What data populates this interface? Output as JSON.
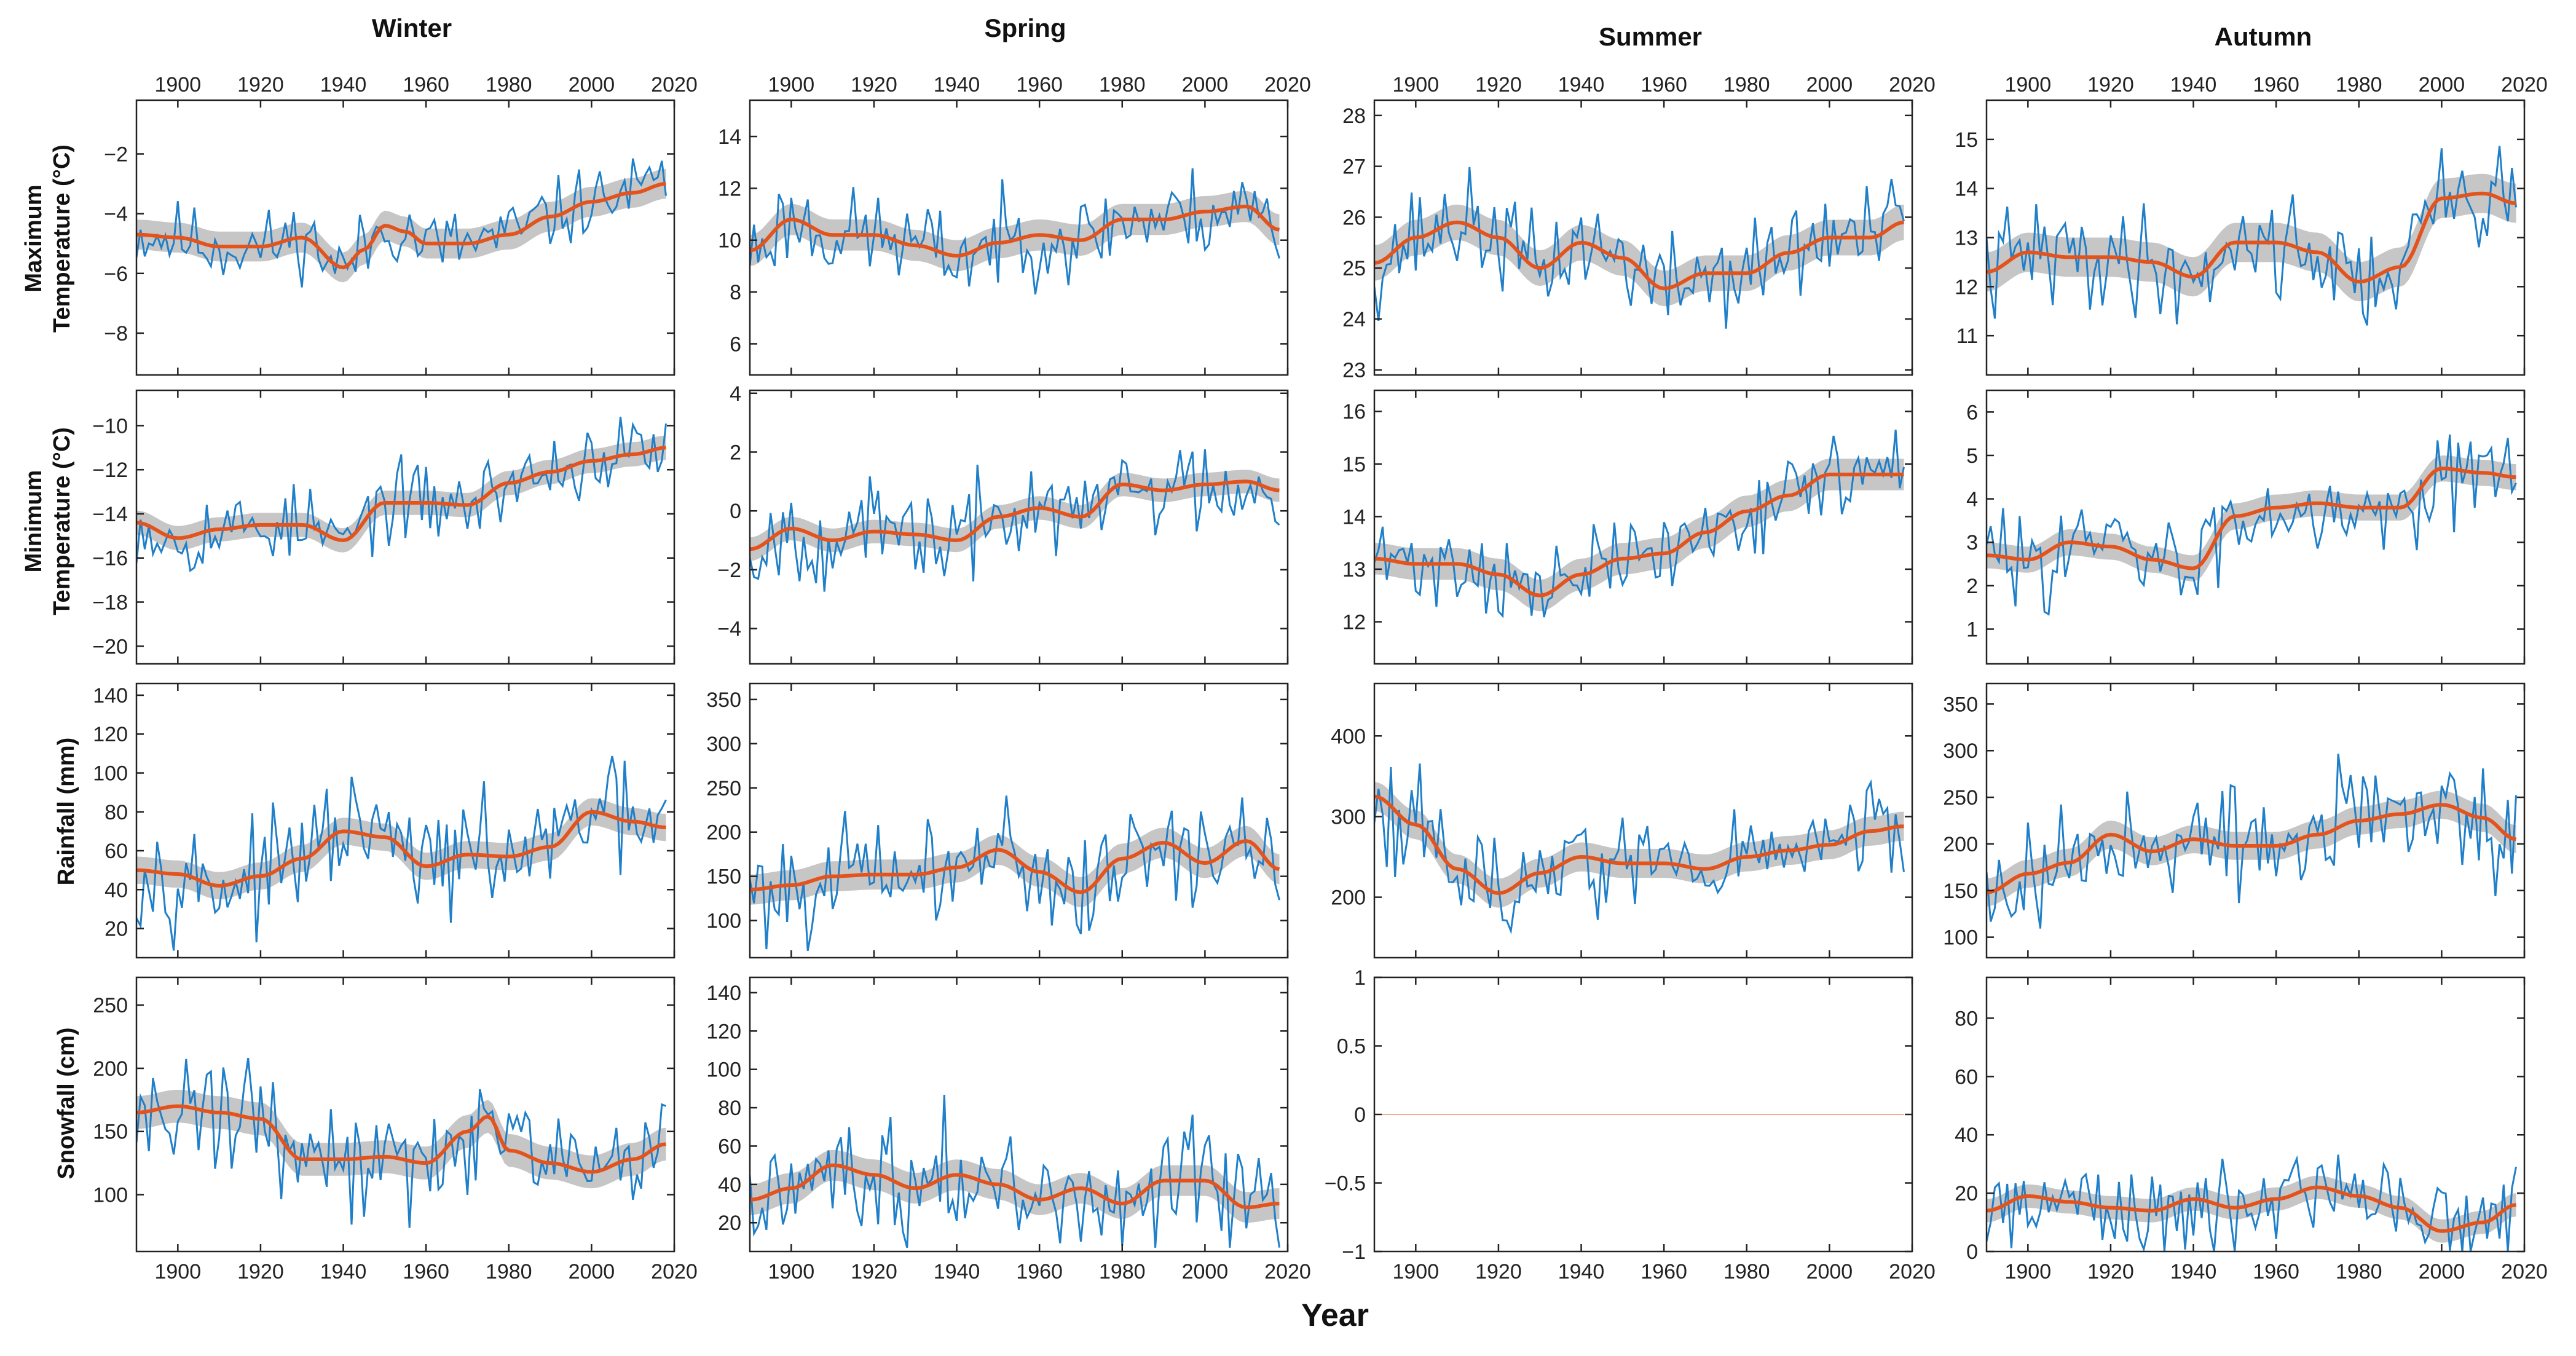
{
  "figure": {
    "columns": [
      "Winter",
      "Spring",
      "Summer",
      "Autumn"
    ],
    "rows": [
      "Maximum\nTemperature (°C)",
      "Minimum\nTemperature (°C)",
      "Rainfall (mm)",
      "Snowfall (cm)"
    ],
    "x_title": "Year",
    "colors": {
      "raw": "#1f7fc9",
      "trend": "#e2531d",
      "band": "#b3b3b3",
      "axis": "#222222"
    }
  },
  "chart_data": [
    {
      "id": "winter-max",
      "type": "line",
      "column": "Winter",
      "row": "Maximum Temperature (°C)",
      "xlim": [
        1890,
        2020
      ],
      "ylim": [
        -9.4,
        -0.2
      ],
      "yticks": [
        -8,
        -6,
        -4,
        -2
      ],
      "trend": {
        "x": [
          1890,
          1900,
          1910,
          1920,
          1930,
          1940,
          1945,
          1950,
          1955,
          1960,
          1970,
          1980,
          1990,
          2000,
          2010,
          2018
        ],
        "y": [
          -4.7,
          -4.8,
          -5.1,
          -5.1,
          -4.8,
          -5.8,
          -5.2,
          -4.4,
          -4.6,
          -5.0,
          -5.0,
          -4.7,
          -4.1,
          -3.6,
          -3.3,
          -3.0
        ],
        "band": 0.5
      },
      "raw": {
        "noise": 0.9,
        "seed": 11,
        "min": -9.1,
        "max": -0.5
      }
    },
    {
      "id": "spring-max",
      "type": "line",
      "column": "Spring",
      "row": "Maximum Temperature (°C)",
      "xlim": [
        1890,
        2020
      ],
      "ylim": [
        4.8,
        15.4
      ],
      "yticks": [
        6,
        8,
        10,
        12,
        14
      ],
      "trend": {
        "x": [
          1890,
          1900,
          1910,
          1920,
          1930,
          1940,
          1950,
          1960,
          1970,
          1980,
          1990,
          2000,
          2010,
          2018
        ],
        "y": [
          9.6,
          10.8,
          10.2,
          10.2,
          9.8,
          9.4,
          9.9,
          10.2,
          10.0,
          10.8,
          10.8,
          11.1,
          11.3,
          10.4
        ],
        "band": 0.6
      },
      "raw": {
        "noise": 1.3,
        "seed": 23,
        "min": 5.0,
        "max": 15.2
      }
    },
    {
      "id": "summer-max",
      "type": "line",
      "column": "Summer",
      "row": "Maximum Temperature (°C)",
      "xlim": [
        1890,
        2020
      ],
      "ylim": [
        22.9,
        28.3
      ],
      "yticks": [
        23,
        24,
        25,
        26,
        27,
        28
      ],
      "trend": {
        "x": [
          1890,
          1900,
          1910,
          1920,
          1930,
          1940,
          1950,
          1960,
          1970,
          1980,
          1990,
          2000,
          2010,
          2018
        ],
        "y": [
          25.1,
          25.6,
          25.9,
          25.6,
          25.0,
          25.5,
          25.2,
          24.6,
          24.9,
          24.9,
          25.3,
          25.6,
          25.6,
          25.9
        ],
        "band": 0.35
      },
      "raw": {
        "noise": 0.75,
        "seed": 37,
        "min": 22.9,
        "max": 28.3
      }
    },
    {
      "id": "autumn-max",
      "type": "line",
      "column": "Autumn",
      "row": "Maximum Temperature (°C)",
      "xlim": [
        1890,
        2020
      ],
      "ylim": [
        10.2,
        15.8
      ],
      "yticks": [
        11,
        12,
        13,
        14,
        15
      ],
      "trend": {
        "x": [
          1890,
          1900,
          1910,
          1920,
          1930,
          1940,
          1950,
          1960,
          1970,
          1980,
          1990,
          2000,
          2010,
          2018
        ],
        "y": [
          12.3,
          12.7,
          12.6,
          12.6,
          12.5,
          12.2,
          12.9,
          12.9,
          12.7,
          12.1,
          12.4,
          13.8,
          13.9,
          13.7
        ],
        "band": 0.4
      },
      "raw": {
        "noise": 0.8,
        "seed": 41,
        "min": 10.4,
        "max": 15.7
      }
    },
    {
      "id": "winter-min",
      "type": "line",
      "column": "Winter",
      "row": "Minimum Temperature (°C)",
      "xlim": [
        1890,
        2020
      ],
      "ylim": [
        -20.8,
        -8.4
      ],
      "yticks": [
        -20,
        -18,
        -16,
        -14,
        -12,
        -10
      ],
      "trend": {
        "x": [
          1890,
          1900,
          1910,
          1920,
          1930,
          1940,
          1950,
          1960,
          1970,
          1980,
          1990,
          2000,
          2010,
          2018
        ],
        "y": [
          -14.4,
          -15.1,
          -14.7,
          -14.5,
          -14.5,
          -15.2,
          -13.5,
          -13.5,
          -13.6,
          -12.6,
          -12.1,
          -11.6,
          -11.3,
          -11.0
        ],
        "band": 0.55
      },
      "raw": {
        "noise": 1.3,
        "seed": 53,
        "min": -20.6,
        "max": -8.7
      }
    },
    {
      "id": "spring-min",
      "type": "line",
      "column": "Spring",
      "row": "Minimum Temperature (°C)",
      "xlim": [
        1890,
        2020
      ],
      "ylim": [
        -5.2,
        4.1
      ],
      "yticks": [
        -4,
        -2,
        0,
        2,
        4
      ],
      "trend": {
        "x": [
          1890,
          1900,
          1910,
          1920,
          1930,
          1940,
          1950,
          1960,
          1970,
          1980,
          1990,
          2000,
          2010,
          2018
        ],
        "y": [
          -1.3,
          -0.6,
          -1.0,
          -0.7,
          -0.8,
          -1.0,
          -0.2,
          0.1,
          -0.2,
          0.9,
          0.7,
          0.9,
          1.0,
          0.7
        ],
        "band": 0.4
      },
      "raw": {
        "noise": 1.2,
        "seed": 67,
        "min": -5.0,
        "max": 4.0
      }
    },
    {
      "id": "summer-min",
      "type": "line",
      "column": "Summer",
      "row": "Minimum Temperature (°C)",
      "xlim": [
        1890,
        2020
      ],
      "ylim": [
        11.2,
        16.4
      ],
      "yticks": [
        12,
        13,
        14,
        15,
        16
      ],
      "trend": {
        "x": [
          1890,
          1900,
          1910,
          1920,
          1930,
          1940,
          1950,
          1960,
          1970,
          1980,
          1990,
          2000,
          2010,
          2018
        ],
        "y": [
          13.2,
          13.1,
          13.1,
          12.9,
          12.5,
          12.9,
          13.2,
          13.3,
          13.7,
          14.1,
          14.4,
          14.8,
          14.8,
          14.8
        ],
        "band": 0.3
      },
      "raw": {
        "noise": 0.6,
        "seed": 71,
        "min": 11.3,
        "max": 16.4
      }
    },
    {
      "id": "autumn-min",
      "type": "line",
      "column": "Autumn",
      "row": "Minimum Temperature (°C)",
      "xlim": [
        1890,
        2020
      ],
      "ylim": [
        0.2,
        6.5
      ],
      "yticks": [
        1,
        2,
        3,
        4,
        5,
        6
      ],
      "trend": {
        "x": [
          1890,
          1900,
          1910,
          1920,
          1930,
          1940,
          1950,
          1960,
          1970,
          1980,
          1990,
          2000,
          2010,
          2018
        ],
        "y": [
          2.7,
          2.6,
          3.0,
          2.9,
          2.6,
          2.4,
          3.6,
          3.8,
          3.9,
          3.8,
          3.8,
          4.7,
          4.6,
          4.5
        ],
        "band": 0.3
      },
      "raw": {
        "noise": 0.8,
        "seed": 83,
        "min": 0.4,
        "max": 6.4
      }
    },
    {
      "id": "winter-rain",
      "type": "line",
      "column": "Winter",
      "row": "Rainfall (mm)",
      "xlim": [
        1890,
        2020
      ],
      "ylim": [
        5,
        146
      ],
      "yticks": [
        20,
        40,
        60,
        80,
        100,
        120,
        140
      ],
      "trend": {
        "x": [
          1890,
          1900,
          1910,
          1920,
          1930,
          1940,
          1950,
          1960,
          1970,
          1980,
          1990,
          2000,
          2010,
          2018
        ],
        "y": [
          50,
          48,
          42,
          47,
          56,
          70,
          67,
          52,
          58,
          57,
          62,
          80,
          75,
          72
        ],
        "band": 7
      },
      "raw": {
        "noise": 20,
        "seed": 97,
        "min": 8,
        "max": 146
      }
    },
    {
      "id": "spring-rain",
      "type": "line",
      "column": "Spring",
      "row": "Rainfall (mm)",
      "xlim": [
        1890,
        2020
      ],
      "ylim": [
        58,
        368
      ],
      "yticks": [
        100,
        150,
        200,
        250,
        300,
        350
      ],
      "trend": {
        "x": [
          1890,
          1900,
          1910,
          1920,
          1930,
          1940,
          1950,
          1960,
          1970,
          1980,
          1990,
          2000,
          2010,
          2018
        ],
        "y": [
          135,
          140,
          150,
          152,
          152,
          160,
          180,
          155,
          132,
          170,
          188,
          165,
          190,
          158
        ],
        "band": 17
      },
      "raw": {
        "noise": 45,
        "seed": 101,
        "min": 60,
        "max": 366
      }
    },
    {
      "id": "summer-rain",
      "type": "line",
      "column": "Summer",
      "row": "Rainfall (mm)",
      "xlim": [
        1890,
        2020
      ],
      "ylim": [
        125,
        465
      ],
      "yticks": [
        200,
        300,
        400
      ],
      "trend": {
        "x": [
          1890,
          1900,
          1910,
          1920,
          1930,
          1940,
          1950,
          1960,
          1970,
          1980,
          1990,
          2000,
          2010,
          2018
        ],
        "y": [
          325,
          290,
          235,
          205,
          230,
          250,
          242,
          242,
          235,
          250,
          258,
          265,
          282,
          288
        ],
        "band": 18
      },
      "raw": {
        "noise": 48,
        "seed": 113,
        "min": 128,
        "max": 465
      }
    },
    {
      "id": "autumn-rain",
      "type": "line",
      "column": "Autumn",
      "row": "Rainfall (mm)",
      "xlim": [
        1890,
        2020
      ],
      "ylim": [
        78,
        372
      ],
      "yticks": [
        100,
        150,
        200,
        250,
        300,
        350
      ],
      "trend": {
        "x": [
          1890,
          1900,
          1910,
          1920,
          1930,
          1940,
          1950,
          1960,
          1970,
          1980,
          1990,
          2000,
          2010,
          2018
        ],
        "y": [
          148,
          168,
          180,
          210,
          192,
          205,
          198,
          198,
          210,
          225,
          232,
          242,
          228,
          205
        ],
        "band": 15
      },
      "raw": {
        "noise": 45,
        "seed": 127,
        "min": 82,
        "max": 370
      }
    },
    {
      "id": "winter-snow",
      "type": "line",
      "column": "Winter",
      "row": "Snowfall (cm)",
      "xlim": [
        1890,
        2020
      ],
      "ylim": [
        55,
        272
      ],
      "yticks": [
        100,
        150,
        200,
        250
      ],
      "trend": {
        "x": [
          1890,
          1900,
          1910,
          1920,
          1930,
          1940,
          1950,
          1960,
          1970,
          1975,
          1980,
          1990,
          2000,
          2010,
          2018
        ],
        "y": [
          165,
          170,
          165,
          160,
          128,
          128,
          130,
          125,
          150,
          162,
          135,
          125,
          118,
          128,
          140
        ],
        "band": 13
      },
      "raw": {
        "noise": 33,
        "seed": 131,
        "min": 58,
        "max": 270
      }
    },
    {
      "id": "spring-snow",
      "type": "line",
      "column": "Spring",
      "row": "Snowfall (cm)",
      "xlim": [
        1890,
        2020
      ],
      "ylim": [
        5,
        148
      ],
      "yticks": [
        20,
        40,
        60,
        80,
        100,
        120,
        140
      ],
      "trend": {
        "x": [
          1890,
          1900,
          1910,
          1920,
          1930,
          1940,
          1950,
          1960,
          1970,
          1980,
          1990,
          2000,
          2010,
          2018
        ],
        "y": [
          32,
          38,
          50,
          45,
          38,
          45,
          40,
          32,
          38,
          30,
          42,
          42,
          28,
          30
        ],
        "band": 8
      },
      "raw": {
        "noise": 22,
        "seed": 149,
        "min": 7,
        "max": 146
      }
    },
    {
      "id": "summer-snow",
      "type": "line",
      "column": "Summer",
      "row": "Snowfall (cm)",
      "xlim": [
        1890,
        2020
      ],
      "ylim": [
        -1,
        1
      ],
      "yticks": [
        -1,
        -0.5,
        0,
        0.5,
        1
      ],
      "trend": {
        "x": [
          1890,
          2018
        ],
        "y": [
          0,
          0
        ],
        "band": 0
      },
      "raw": {
        "noise": 0,
        "seed": 151,
        "min": 0,
        "max": 0
      }
    },
    {
      "id": "autumn-snow",
      "type": "line",
      "column": "Autumn",
      "row": "Snowfall (cm)",
      "xlim": [
        1890,
        2020
      ],
      "ylim": [
        0,
        94
      ],
      "yticks": [
        0,
        20,
        40,
        60,
        80
      ],
      "trend": {
        "x": [
          1890,
          1900,
          1910,
          1920,
          1930,
          1940,
          1950,
          1960,
          1970,
          1980,
          1990,
          2000,
          2010,
          2018
        ],
        "y": [
          14,
          19,
          17,
          15,
          14,
          18,
          15,
          18,
          22,
          19,
          15,
          7,
          10,
          16
        ],
        "band": 4
      },
      "raw": {
        "noise": 11,
        "seed": 163,
        "min": 0,
        "max": 93
      }
    }
  ],
  "xticks": [
    1900,
    1920,
    1940,
    1960,
    1980,
    2000,
    2020
  ]
}
